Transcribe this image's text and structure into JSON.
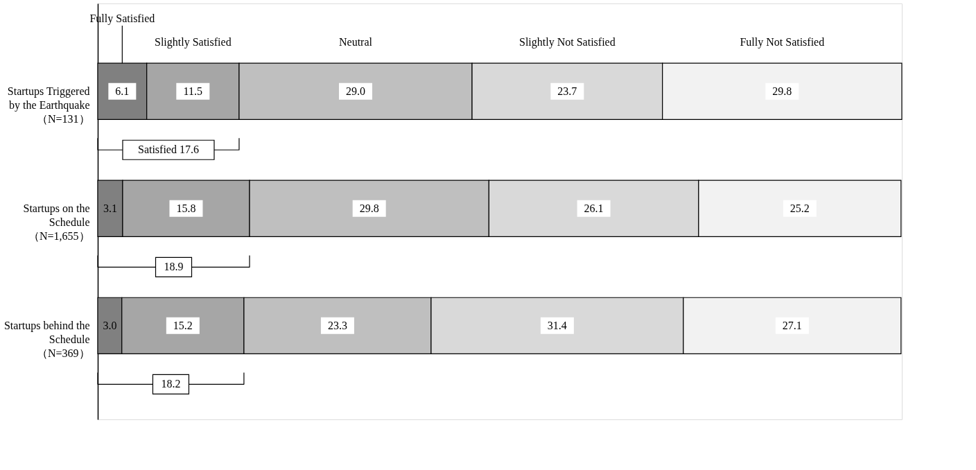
{
  "chart_data": {
    "type": "bar",
    "orientation": "horizontal",
    "stacked": true,
    "legend": "top",
    "tick_labels": "y",
    "categories": [
      "Startups Triggered\nby the Earthquake\n（N=131）",
      "Startups on the\nSchedule\n（N=1,655）",
      "Startups behind the\nSchedule\n（N=369）"
    ],
    "series": [
      {
        "name": "Fully Satisfied",
        "color": "#808080",
        "values": [
          6.1,
          3.1,
          3.0
        ],
        "value_labels": [
          "6.1",
          "3.1",
          "3.0"
        ]
      },
      {
        "name": "Slightly Satisfied",
        "color": "#a6a6a6",
        "values": [
          11.5,
          15.8,
          15.2
        ],
        "value_labels": [
          "11.5",
          "15.8",
          "15.2"
        ]
      },
      {
        "name": "Neutral",
        "color": "#bfbfbf",
        "values": [
          29.0,
          29.8,
          23.3
        ],
        "value_labels": [
          "29.0",
          "29.8",
          "23.3"
        ]
      },
      {
        "name": "Slightly Not Satisfied",
        "color": "#d9d9d9",
        "values": [
          23.7,
          26.1,
          31.4
        ],
        "value_labels": [
          "23.7",
          "26.1",
          "31.4"
        ]
      },
      {
        "name": "Fully Not Satisfied",
        "color": "#f2f2f2",
        "values": [
          29.8,
          25.2,
          27.1
        ],
        "value_labels": [
          "29.8",
          "25.2",
          "27.1"
        ]
      }
    ],
    "annotations": [
      "Satisfied 17.6",
      "18.9",
      "18.2"
    ]
  }
}
